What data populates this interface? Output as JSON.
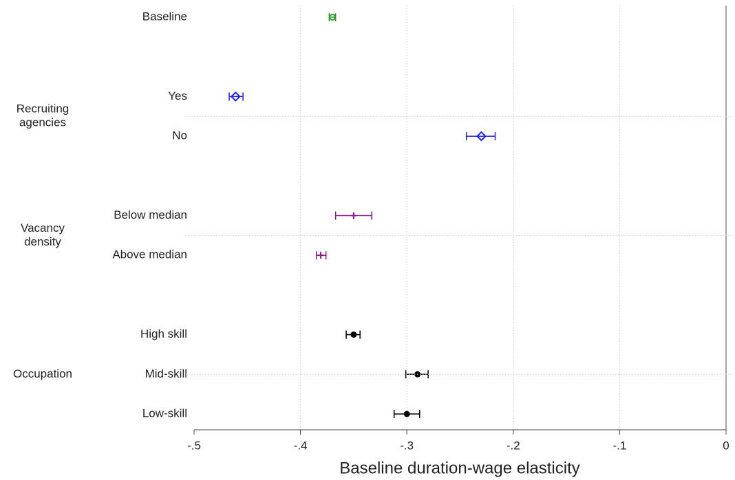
{
  "chart_data": {
    "type": "coefplot",
    "xlabel": "Baseline duration-wage elasticity",
    "xlim": [
      -0.5,
      0
    ],
    "xticks": [
      {
        "value": -0.5,
        "label": "-.5"
      },
      {
        "value": -0.4,
        "label": "-.4"
      },
      {
        "value": -0.3,
        "label": "-.3"
      },
      {
        "value": -0.2,
        "label": "-.2"
      },
      {
        "value": -0.1,
        "label": "-.1"
      },
      0
    ],
    "grid": true,
    "zero_line": true,
    "groups": [
      {
        "label": null,
        "color": "#2e9a2e",
        "marker": "hollow-circle",
        "rows": [
          {
            "label": "Baseline",
            "value": -0.37,
            "ci_low": -0.373,
            "ci_high": -0.367
          }
        ]
      },
      {
        "label": [
          "Recruiting",
          "agencies"
        ],
        "color": "#2020e8",
        "marker": "hollow-diamond",
        "rows": [
          {
            "label": "Yes",
            "value": -0.461,
            "ci_low": -0.467,
            "ci_high": -0.454
          },
          {
            "label": "No",
            "value": -0.23,
            "ci_low": -0.244,
            "ci_high": -0.217
          }
        ]
      },
      {
        "label": [
          "Vacancy",
          "density"
        ],
        "color": "#8a1a8a",
        "marker": "plus",
        "rows": [
          {
            "label": "Below median",
            "value": -0.35,
            "ci_low": -0.367,
            "ci_high": -0.333
          },
          {
            "label": "Above median",
            "value": -0.381,
            "ci_low": -0.385,
            "ci_high": -0.376
          }
        ]
      },
      {
        "label": [
          "Occupation"
        ],
        "color": "#000000",
        "marker": "filled-circle",
        "rows": [
          {
            "label": "High skill",
            "value": -0.35,
            "ci_low": -0.357,
            "ci_high": -0.344
          },
          {
            "label": "Mid-skill",
            "value": -0.29,
            "ci_low": -0.301,
            "ci_high": -0.28
          },
          {
            "label": "Low-skill",
            "value": -0.3,
            "ci_low": -0.312,
            "ci_high": -0.288
          }
        ]
      }
    ]
  }
}
